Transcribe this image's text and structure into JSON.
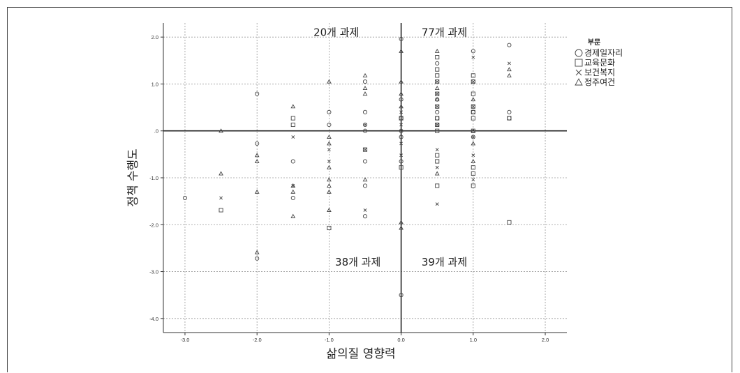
{
  "chart_data": {
    "type": "scatter",
    "xlabel": "삶의질 영향력",
    "ylabel": "정책 수행도",
    "xlim": [
      -3.3,
      2.3
    ],
    "ylim": [
      -4.3,
      2.3
    ],
    "x_ticks": [
      -3.0,
      -2.0,
      -1.0,
      0.0,
      1.0,
      2.0
    ],
    "x_tick_labels": [
      "-3.0",
      "-2.0",
      "-1.0",
      "0.0",
      "1.0",
      "2.0"
    ],
    "y_ticks": [
      2.0,
      1.0,
      0.0,
      -1.0,
      -2.0,
      -3.0,
      -4.0
    ],
    "y_tick_labels": [
      "2.0",
      "1.0",
      ".0",
      "-1.0",
      "-2.0",
      "-3.0",
      "-4.0"
    ],
    "grid": true,
    "reference_lines": {
      "x": 0,
      "y": 0
    },
    "annotations": [
      {
        "text": "20개  과제",
        "x": -0.9,
        "y": 2.1
      },
      {
        "text": "77개  과제",
        "x": 0.6,
        "y": 2.1
      },
      {
        "text": "38개  과제",
        "x": -0.6,
        "y": -2.8
      },
      {
        "text": "39개  과제",
        "x": 0.6,
        "y": -2.8
      }
    ],
    "legend": {
      "title": "부문",
      "position": "right",
      "entries": [
        {
          "label": "경제일자리",
          "marker": "circle"
        },
        {
          "label": "교육문화",
          "marker": "square"
        },
        {
          "label": "보건복지",
          "marker": "x"
        },
        {
          "label": "정주여건",
          "marker": "triangle"
        }
      ]
    },
    "series": [
      {
        "name": "경제일자리",
        "marker": "circle",
        "points": [
          [
            -3.0,
            -1.43
          ],
          [
            -2.0,
            0.79
          ],
          [
            -2.0,
            -0.27
          ],
          [
            -2.0,
            -2.72
          ],
          [
            -1.5,
            -0.65
          ],
          [
            -1.5,
            -1.43
          ],
          [
            -1.0,
            0.4
          ],
          [
            -1.0,
            0.13
          ],
          [
            -0.5,
            1.05
          ],
          [
            -0.5,
            0.4
          ],
          [
            -0.5,
            0.13
          ],
          [
            -0.5,
            0.0
          ],
          [
            -0.5,
            -0.65
          ],
          [
            -0.5,
            -1.17
          ],
          [
            -0.5,
            -1.82
          ],
          [
            0.0,
            1.96
          ],
          [
            0.0,
            0.67
          ],
          [
            0.0,
            0.27
          ],
          [
            0.0,
            0.0
          ],
          [
            0.0,
            -0.13
          ],
          [
            0.0,
            -0.65
          ],
          [
            0.0,
            -3.5
          ],
          [
            0.5,
            1.44
          ],
          [
            0.5,
            0.67
          ],
          [
            0.5,
            0.4
          ],
          [
            0.5,
            0.27
          ],
          [
            0.5,
            0.13
          ],
          [
            1.0,
            1.7
          ],
          [
            1.0,
            0.4
          ],
          [
            1.0,
            -0.13
          ],
          [
            1.5,
            1.83
          ],
          [
            1.5,
            0.4
          ],
          [
            1.5,
            0.27
          ]
        ]
      },
      {
        "name": "교육문화",
        "marker": "square",
        "points": [
          [
            -2.5,
            -1.69
          ],
          [
            -1.5,
            0.27
          ],
          [
            -1.5,
            0.13
          ],
          [
            -1.0,
            -2.07
          ],
          [
            -0.5,
            -0.4
          ],
          [
            0.0,
            0.27
          ],
          [
            0.0,
            -0.78
          ],
          [
            0.5,
            1.57
          ],
          [
            0.5,
            1.31
          ],
          [
            0.5,
            1.18
          ],
          [
            0.5,
            1.05
          ],
          [
            0.5,
            0.79
          ],
          [
            0.5,
            0.52
          ],
          [
            0.5,
            0.27
          ],
          [
            0.5,
            0.13
          ],
          [
            0.5,
            0.0
          ],
          [
            0.5,
            -0.52
          ],
          [
            0.5,
            -0.65
          ],
          [
            0.5,
            -1.17
          ],
          [
            1.0,
            1.18
          ],
          [
            1.0,
            1.05
          ],
          [
            1.0,
            0.79
          ],
          [
            1.0,
            0.52
          ],
          [
            1.0,
            0.4
          ],
          [
            1.0,
            0.27
          ],
          [
            1.0,
            0.0
          ],
          [
            1.0,
            -0.78
          ],
          [
            1.0,
            -0.91
          ],
          [
            1.0,
            -1.17
          ],
          [
            1.5,
            0.27
          ],
          [
            1.5,
            -1.95
          ]
        ]
      },
      {
        "name": "보건복지",
        "marker": "x",
        "points": [
          [
            -2.5,
            -1.43
          ],
          [
            -1.5,
            -0.13
          ],
          [
            -1.5,
            -1.17
          ],
          [
            -1.0,
            -0.4
          ],
          [
            -1.0,
            -0.65
          ],
          [
            -0.5,
            0.13
          ],
          [
            -0.5,
            -0.4
          ],
          [
            -0.5,
            -1.69
          ],
          [
            0.0,
            0.4
          ],
          [
            0.0,
            0.13
          ],
          [
            0.0,
            -0.27
          ],
          [
            0.0,
            -0.52
          ],
          [
            0.5,
            1.05
          ],
          [
            0.5,
            0.79
          ],
          [
            0.5,
            0.52
          ],
          [
            0.5,
            0.13
          ],
          [
            0.5,
            -0.4
          ],
          [
            0.5,
            -0.78
          ],
          [
            0.5,
            -1.56
          ],
          [
            1.0,
            1.57
          ],
          [
            1.0,
            1.05
          ],
          [
            1.0,
            0.52
          ],
          [
            1.0,
            -0.13
          ],
          [
            1.0,
            -0.52
          ],
          [
            1.0,
            -1.04
          ],
          [
            1.5,
            1.44
          ]
        ]
      },
      {
        "name": "정주여건",
        "marker": "triangle",
        "points": [
          [
            -2.5,
            0.0
          ],
          [
            -2.5,
            -0.91
          ],
          [
            -2.0,
            -0.52
          ],
          [
            -2.0,
            -0.65
          ],
          [
            -2.0,
            -1.3
          ],
          [
            -2.0,
            -2.59
          ],
          [
            -1.5,
            0.52
          ],
          [
            -1.5,
            -1.17
          ],
          [
            -1.5,
            -1.3
          ],
          [
            -1.5,
            -1.82
          ],
          [
            -1.0,
            1.05
          ],
          [
            -1.0,
            -0.13
          ],
          [
            -1.0,
            -0.27
          ],
          [
            -1.0,
            -0.78
          ],
          [
            -1.0,
            -1.04
          ],
          [
            -1.0,
            -1.17
          ],
          [
            -1.0,
            -1.3
          ],
          [
            -1.0,
            -1.69
          ],
          [
            -0.5,
            1.18
          ],
          [
            -0.5,
            0.91
          ],
          [
            -0.5,
            0.79
          ],
          [
            -0.5,
            -1.04
          ],
          [
            0.0,
            1.7
          ],
          [
            0.0,
            1.05
          ],
          [
            0.0,
            0.79
          ],
          [
            0.0,
            0.52
          ],
          [
            0.0,
            -1.95
          ],
          [
            0.0,
            -2.07
          ],
          [
            0.5,
            1.7
          ],
          [
            0.5,
            0.91
          ],
          [
            0.5,
            0.67
          ],
          [
            0.5,
            -0.91
          ],
          [
            1.0,
            0.67
          ],
          [
            1.0,
            0.0
          ],
          [
            1.0,
            -0.27
          ],
          [
            1.0,
            -0.65
          ],
          [
            1.5,
            1.31
          ],
          [
            1.5,
            1.18
          ]
        ]
      }
    ]
  }
}
